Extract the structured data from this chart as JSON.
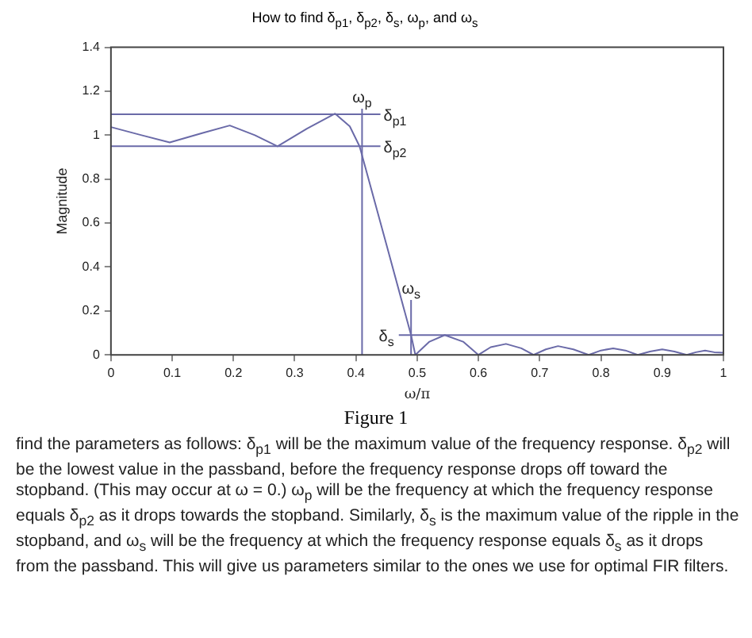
{
  "chart_data": {
    "type": "line",
    "title": "How to find δ$_{p1}$, δ$_{p2}$, δ$_{s}$, ω$_{p}$, and ω$_{s}$",
    "xlabel": "ω/π",
    "ylabel": "Magnitude",
    "xlim": [
      0,
      1
    ],
    "ylim": [
      0,
      1.4
    ],
    "xticks": [
      0,
      0.1,
      0.2,
      0.3,
      0.4,
      0.5,
      0.6,
      0.7,
      0.8,
      0.9,
      1
    ],
    "yticks": [
      0,
      0.2,
      0.4,
      0.6,
      0.8,
      1,
      1.2,
      1.4
    ],
    "series": [
      {
        "color": "#6a6aa8",
        "x": [
          0,
          0.05,
          0.096,
          0.15,
          0.194,
          0.235,
          0.272,
          0.32,
          0.366,
          0.39,
          0.406,
          0.45,
          0.49,
          0.497,
          0.52,
          0.545,
          0.575,
          0.6,
          0.62,
          0.645,
          0.67,
          0.69,
          0.71,
          0.73,
          0.755,
          0.78,
          0.8,
          0.82,
          0.84,
          0.86,
          0.88,
          0.9,
          0.92,
          0.94,
          0.955,
          0.97,
          0.985,
          1
        ],
        "values": [
          1.037,
          1.0,
          0.967,
          1.01,
          1.044,
          1.0,
          0.949,
          1.03,
          1.098,
          1.04,
          0.949,
          0.5,
          0.09,
          0,
          0.06,
          0.09,
          0.06,
          0,
          0.035,
          0.05,
          0.03,
          0,
          0.025,
          0.04,
          0.025,
          0,
          0.02,
          0.03,
          0.02,
          0,
          0.015,
          0.025,
          0.015,
          0,
          0.012,
          0.02,
          0.012,
          0.01
        ]
      },
      {
        "name": "δ$_{p1}$",
        "color": "#6a6aa8",
        "x": [
          0,
          0.44
        ],
        "values": [
          1.095,
          1.095
        ]
      },
      {
        "name": "δ$_{p2}$",
        "color": "#6a6aa8",
        "x": [
          0,
          0.44
        ],
        "values": [
          0.95,
          0.95
        ]
      },
      {
        "name": "ω$_{p}$",
        "color": "#6a6aa8",
        "x": [
          0.41,
          0.41
        ],
        "values": [
          0,
          1.12
        ]
      },
      {
        "name": "ω$_{s}$",
        "color": "#6a6aa8",
        "x": [
          0.49,
          0.49
        ],
        "values": [
          0,
          0.25
        ]
      },
      {
        "name": "δ$_{s}$",
        "color": "#6a6aa8",
        "x": [
          1,
          0.47
        ],
        "values": [
          0.09,
          0.09
        ]
      }
    ],
    "annotations": [
      "Figure 1",
      "find the parameters as follows: δ$_{p1}$ will be the maximum value of the frequency response. δ$_{p2}$ will be the lowest value in the passband, before the frequency response drops off toward the stopband. (This may occur at ω = 0.) ω$_{p}$ will be the frequency at which the frequency response equals δ$_{p2}$ as it drops towards the stopband. Similarly, δ$_{s}$ is the maximum value of the ripple in the stopband, and ω$_{s}$ will be the frequency at which the frequency response equals δ$_{s}$ as it drops from the passband. This will give us parameters similar to the ones we use for optimal FIR filters."
    ]
  }
}
